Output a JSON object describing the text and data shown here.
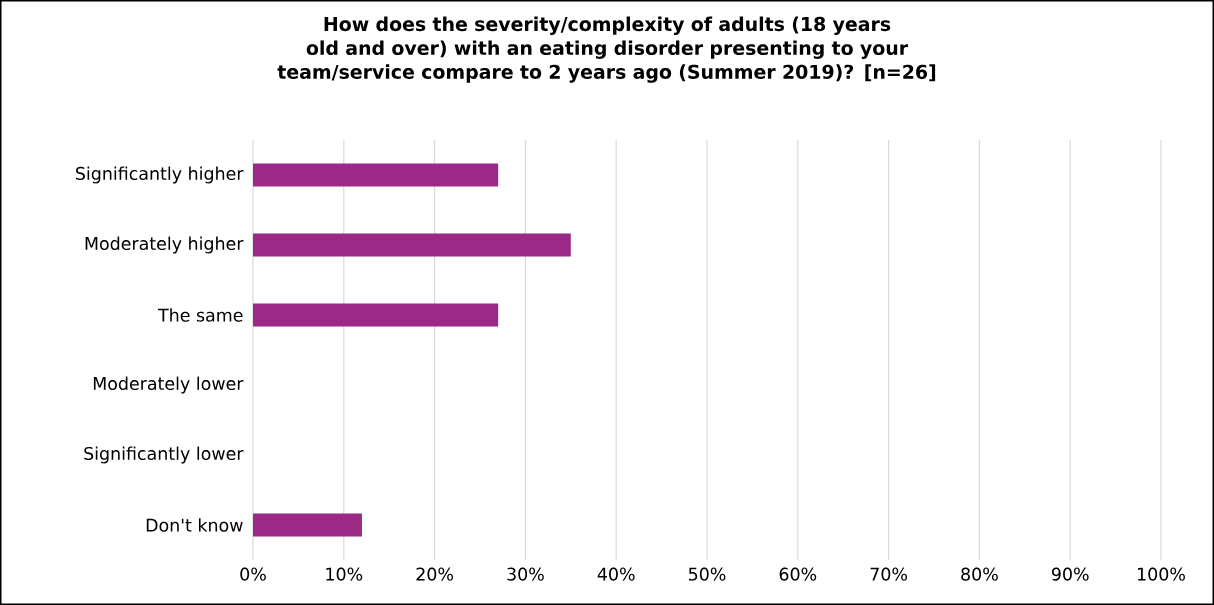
{
  "chart_data": {
    "type": "bar",
    "orientation": "horizontal",
    "title": "How does the severity/complexity of adults (18 years old and over) with an eating disorder presenting to your team/service compare to 2 years ago (Summer 2019)? [n=26]",
    "categories": [
      "Significantly higher",
      "Moderately higher",
      "The same",
      "Moderately lower",
      "Significantly lower",
      "Don't know"
    ],
    "values": [
      27,
      35,
      27,
      0,
      0,
      12
    ],
    "color": "#9b2a87",
    "xlim": [
      0,
      100
    ],
    "xticks": [
      {
        "value": 0,
        "label": "0%"
      },
      {
        "value": 10,
        "label": "10%"
      },
      {
        "value": 20,
        "label": "20%"
      },
      {
        "value": 30,
        "label": "30%"
      },
      {
        "value": 40,
        "label": "40%"
      },
      {
        "value": 50,
        "label": "50%"
      },
      {
        "value": 60,
        "label": "60%"
      },
      {
        "value": 70,
        "label": "70%"
      },
      {
        "value": 80,
        "label": "80%"
      },
      {
        "value": 90,
        "label": "90%"
      },
      {
        "value": 100,
        "label": "100%"
      }
    ],
    "grid": "x"
  }
}
